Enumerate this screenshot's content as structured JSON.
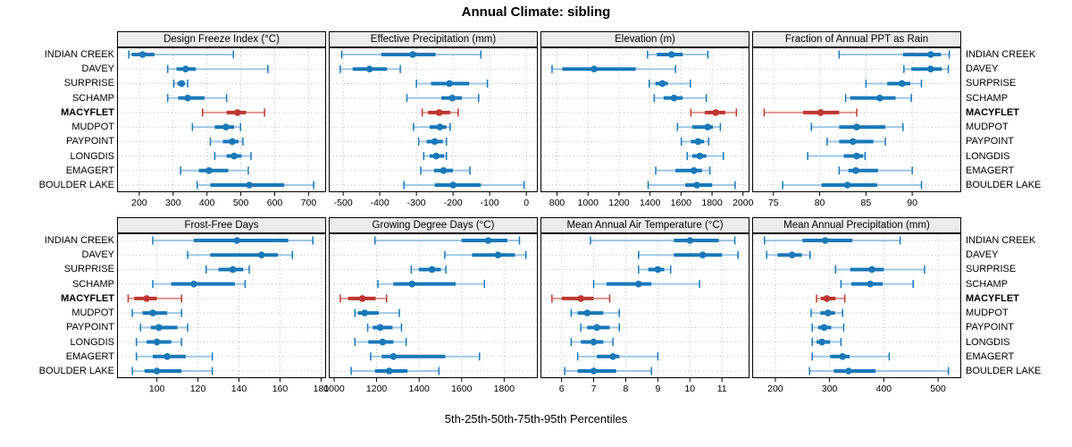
{
  "title": "Annual Climate: sibling",
  "caption": "5th-25th-50th-75th-95th Percentiles",
  "sites": [
    "INDIAN CREEK",
    "DAVEY",
    "SURPRISE",
    "SCHAMP",
    "MACYFLET",
    "MUDPOT",
    "PAYPOINT",
    "LONGDIS",
    "EMAGERT",
    "BOULDER LAKE"
  ],
  "highlight_site": "MACYFLET",
  "percentile_labels": [
    "5th",
    "25th",
    "50th",
    "75th",
    "95th"
  ],
  "colors": {
    "series_normal": "#1878b8",
    "series_normal_light": "#9ec7e3",
    "series_highlight": "#bf352f",
    "series_highlight_light": "#d99790",
    "grid": "#bdbdbd",
    "strip_bg": "#ececec",
    "border": "#000000"
  },
  "chart_data": [
    {
      "type": "dotplot-intervals",
      "title": "Design Freeze Index (°C)",
      "xlim": [
        137,
        749
      ],
      "ticks": [
        200,
        300,
        400,
        500,
        600,
        700
      ],
      "percentiles": [
        "5th",
        "25th",
        "50th",
        "75th",
        "95th"
      ],
      "values": [
        [
          169,
          178,
          210,
          245,
          478
        ],
        [
          284,
          310,
          337,
          367,
          580
        ],
        [
          302,
          313,
          325,
          334,
          343
        ],
        [
          284,
          315,
          343,
          393,
          458
        ],
        [
          387,
          458,
          490,
          515,
          570
        ],
        [
          357,
          423,
          456,
          480,
          499
        ],
        [
          410,
          447,
          475,
          493,
          506
        ],
        [
          423,
          458,
          480,
          502,
          530
        ],
        [
          322,
          376,
          406,
          463,
          522
        ],
        [
          371,
          410,
          525,
          628,
          715
        ]
      ]
    },
    {
      "type": "dotplot-intervals",
      "title": "Effective Precipitation (mm)",
      "xlim": [
        -537,
        29
      ],
      "ticks": [
        -500,
        -400,
        -300,
        -200,
        -100,
        0
      ],
      "percentiles": [
        "5th",
        "25th",
        "50th",
        "75th",
        "95th"
      ],
      "values": [
        [
          -504,
          -396,
          -310,
          -248,
          -124
        ],
        [
          -508,
          -474,
          -428,
          -380,
          -344
        ],
        [
          -300,
          -260,
          -210,
          -156,
          -106
        ],
        [
          -326,
          -232,
          -202,
          -176,
          -130
        ],
        [
          -284,
          -268,
          -238,
          -208,
          -186
        ],
        [
          -308,
          -264,
          -236,
          -218,
          -208
        ],
        [
          -294,
          -272,
          -250,
          -228,
          -218
        ],
        [
          -280,
          -264,
          -246,
          -224,
          -218
        ],
        [
          -288,
          -252,
          -226,
          -200,
          -154
        ],
        [
          -334,
          -250,
          -200,
          -124,
          -6
        ]
      ]
    },
    {
      "type": "dotplot-intervals",
      "title": "Elevation (m)",
      "xlim": [
        699,
        2036
      ],
      "ticks": [
        800,
        1000,
        1200,
        1400,
        1600,
        1800,
        2000
      ],
      "percentiles": [
        "5th",
        "25th",
        "50th",
        "75th",
        "95th"
      ],
      "values": [
        [
          1384,
          1444,
          1539,
          1611,
          1773
        ],
        [
          768,
          834,
          1039,
          1308,
          1564
        ],
        [
          1395,
          1435,
          1480,
          1515,
          1660
        ],
        [
          1427,
          1488,
          1555,
          1611,
          1763
        ],
        [
          1664,
          1754,
          1824,
          1886,
          1957
        ],
        [
          1577,
          1672,
          1772,
          1805,
          1854
        ],
        [
          1602,
          1664,
          1710,
          1748,
          1778
        ],
        [
          1640,
          1672,
          1721,
          1763,
          1873
        ],
        [
          1437,
          1564,
          1683,
          1735,
          1786
        ],
        [
          1388,
          1627,
          1702,
          1801,
          1949
        ]
      ]
    },
    {
      "type": "dotplot-intervals",
      "title": "Fraction of Annual PPT as Rain",
      "xlim": [
        72.8,
        95.2
      ],
      "ticks": [
        75,
        80,
        85,
        90
      ],
      "percentiles": [
        "5th",
        "25th",
        "50th",
        "75th",
        "95th"
      ],
      "values": [
        [
          82.1,
          89.0,
          92.0,
          93.1,
          94.0
        ],
        [
          89.1,
          89.9,
          92.0,
          93.2,
          93.9
        ],
        [
          85.0,
          87.3,
          88.9,
          89.8,
          91.0
        ],
        [
          82.8,
          83.3,
          86.5,
          88.2,
          89.9
        ],
        [
          74.0,
          78.2,
          80.1,
          82.1,
          84.0
        ],
        [
          79.1,
          82.1,
          84.0,
          87.1,
          89.0
        ],
        [
          80.8,
          82.1,
          83.6,
          85.8,
          87.1
        ],
        [
          78.7,
          82.6,
          84.0,
          84.7,
          84.9
        ],
        [
          82.1,
          83.1,
          83.9,
          86.3,
          90.0
        ],
        [
          76.0,
          80.2,
          83.0,
          86.2,
          91.0
        ]
      ]
    },
    {
      "type": "dotplot-intervals",
      "title": "Frost-Free Days",
      "xlim": [
        81,
        182
      ],
      "ticks": [
        100,
        120,
        140,
        160,
        180
      ],
      "percentiles": [
        "5th",
        "25th",
        "50th",
        "75th",
        "95th"
      ],
      "values": [
        [
          98,
          118,
          139,
          164,
          176
        ],
        [
          115,
          126,
          151,
          159,
          166
        ],
        [
          124,
          130,
          137,
          142,
          145
        ],
        [
          98,
          107,
          118,
          138,
          143
        ],
        [
          86,
          89,
          95,
          100,
          112
        ],
        [
          88,
          93,
          98,
          105,
          112
        ],
        [
          92,
          97,
          101,
          110,
          115
        ],
        [
          90,
          95,
          100,
          107,
          112
        ],
        [
          90,
          98,
          105,
          114,
          127
        ],
        [
          88,
          94,
          100,
          112,
          127
        ]
      ]
    },
    {
      "type": "dotplot-intervals",
      "title": "Growing Degree Days (°C)",
      "xlim": [
        979,
        1954
      ],
      "ticks": [
        1000,
        1200,
        1400,
        1600,
        1800
      ],
      "percentiles": [
        "5th",
        "25th",
        "50th",
        "75th",
        "95th"
      ],
      "values": [
        [
          1192,
          1600,
          1725,
          1815,
          1872
        ],
        [
          1521,
          1649,
          1771,
          1851,
          1902
        ],
        [
          1363,
          1398,
          1461,
          1502,
          1526
        ],
        [
          1206,
          1279,
          1367,
          1572,
          1707
        ],
        [
          1029,
          1066,
          1133,
          1196,
          1247
        ],
        [
          1098,
          1112,
          1144,
          1210,
          1307
        ],
        [
          1158,
          1182,
          1217,
          1275,
          1317
        ],
        [
          1098,
          1161,
          1228,
          1279,
          1339
        ],
        [
          1172,
          1224,
          1279,
          1523,
          1684
        ],
        [
          1080,
          1192,
          1259,
          1345,
          1493
        ]
      ]
    },
    {
      "type": "dotplot-intervals",
      "title": "Mean Annual Air Temperature (°C)",
      "xlim": [
        5.37,
        11.83
      ],
      "ticks": [
        6,
        7,
        8,
        9,
        10,
        11
      ],
      "percentiles": [
        "5th",
        "25th",
        "50th",
        "75th",
        "95th"
      ],
      "values": [
        [
          6.9,
          9.5,
          10.0,
          10.9,
          11.4
        ],
        [
          8.4,
          9.5,
          10.4,
          11.0,
          11.5
        ],
        [
          8.4,
          8.7,
          9.0,
          9.2,
          9.4
        ],
        [
          7.0,
          7.4,
          8.4,
          8.8,
          10.3
        ],
        [
          5.7,
          6.0,
          6.6,
          7.0,
          7.5
        ],
        [
          6.3,
          6.5,
          6.8,
          7.3,
          7.8
        ],
        [
          6.6,
          6.8,
          7.1,
          7.5,
          7.8
        ],
        [
          6.3,
          6.6,
          7.0,
          7.3,
          7.6
        ],
        [
          6.5,
          7.1,
          7.6,
          7.8,
          9.0
        ],
        [
          6.1,
          6.5,
          7.0,
          7.7,
          8.8
        ]
      ]
    },
    {
      "type": "dotplot-intervals",
      "title": "Mean Annual Precipitation (mm)",
      "xlim": [
        159,
        541
      ],
      "ticks": [
        200,
        300,
        400,
        500
      ],
      "percentiles": [
        "5th",
        "25th",
        "50th",
        "75th",
        "95th"
      ],
      "values": [
        [
          180,
          250,
          292,
          342,
          430
        ],
        [
          184,
          204,
          231,
          249,
          264
        ],
        [
          311,
          338,
          378,
          400,
          475
        ],
        [
          321,
          340,
          375,
          398,
          454
        ],
        [
          276,
          284,
          295,
          311,
          328
        ],
        [
          266,
          283,
          297,
          310,
          324
        ],
        [
          268,
          279,
          290,
          303,
          326
        ],
        [
          268,
          276,
          286,
          301,
          321
        ],
        [
          268,
          301,
          324,
          337,
          410
        ],
        [
          263,
          308,
          335,
          385,
          519
        ]
      ]
    }
  ]
}
